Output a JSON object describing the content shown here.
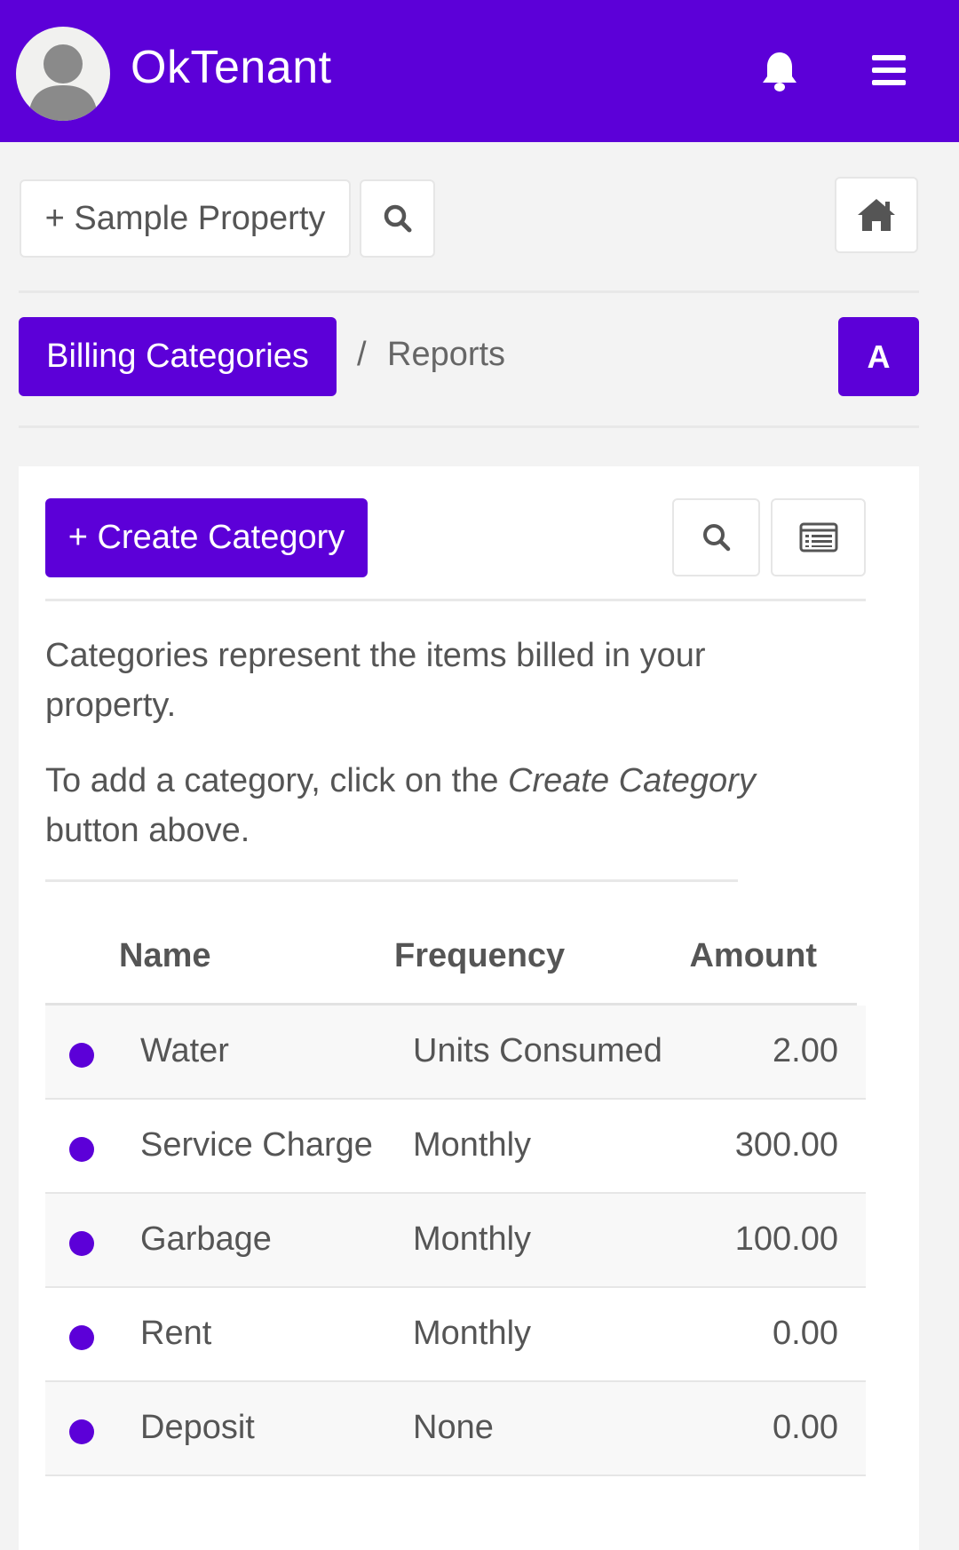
{
  "app": {
    "title": "OkTenant",
    "accent_color": "#5c00d8",
    "avatar_icon": "user-avatar-icon",
    "notifications_icon": "bell-icon",
    "menu_icon": "hamburger-menu-icon"
  },
  "toolbar": {
    "property_button": "+ Sample Property",
    "search_icon": "search-icon",
    "home_icon": "home-icon"
  },
  "breadcrumb": {
    "active": "Billing Categories",
    "separator": "/",
    "reports": "Reports",
    "avatar_letter": "A"
  },
  "card": {
    "create_button": "+ Create Category",
    "search_icon": "search-icon",
    "list_icon": "list-view-icon",
    "description_1": "Categories represent the items billed in your property.",
    "description_2_pre": "To add a category, click on the ",
    "description_2_em": "Create Category",
    "description_2_post": " button above."
  },
  "table": {
    "headers": {
      "name": "Name",
      "frequency": "Frequency",
      "amount": "Amount"
    },
    "rows": [
      {
        "name": "Water",
        "frequency": "Units Consumed",
        "amount": "2.00"
      },
      {
        "name": "Service Charge",
        "frequency": "Monthly",
        "amount": "300.00"
      },
      {
        "name": "Garbage",
        "frequency": "Monthly",
        "amount": "100.00"
      },
      {
        "name": "Rent",
        "frequency": "Monthly",
        "amount": "0.00"
      },
      {
        "name": "Deposit",
        "frequency": "None",
        "amount": "0.00"
      }
    ]
  }
}
